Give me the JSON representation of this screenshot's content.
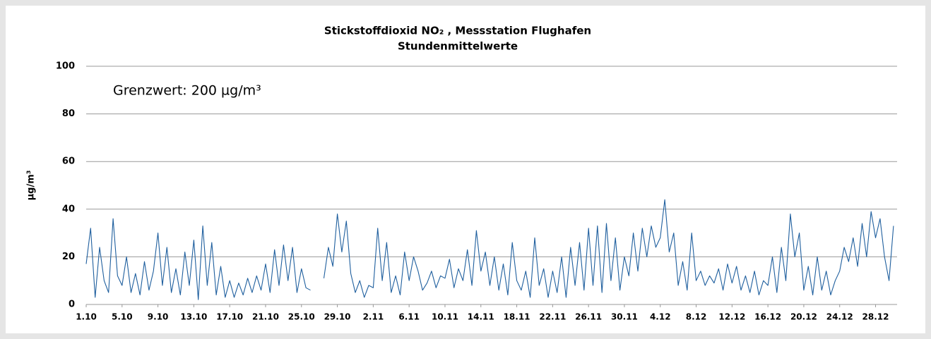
{
  "chart_data": {
    "type": "line",
    "title": "Stickstoffdioxid NO₂ , Messstation Flughafen",
    "subtitle": "Stundenmittelwerte",
    "ylabel": "µg/m³",
    "annotation": "Grenzwert: 200 µg/m³",
    "x": [
      0,
      0.5,
      1,
      1.5,
      2,
      2.5,
      3,
      3.5,
      4,
      4.5,
      5,
      5.5,
      6,
      6.5,
      7,
      7.5,
      8,
      8.5,
      9,
      9.5,
      10,
      10.5,
      11,
      11.5,
      12,
      12.5,
      13,
      13.5,
      14,
      14.5,
      15,
      15.5,
      16,
      16.5,
      17,
      17.5,
      18,
      18.5,
      19,
      19.5,
      20,
      20.5,
      21,
      21.5,
      22,
      22.5,
      23,
      23.5,
      24,
      24.5,
      25,
      25.5,
      26,
      26.5,
      27,
      27.5,
      28,
      28.5,
      29,
      29.5,
      30,
      30.5,
      31,
      31.5,
      32,
      32.5,
      33,
      33.5,
      34,
      34.5,
      35,
      35.5,
      36,
      36.5,
      37,
      37.5,
      38,
      38.5,
      39,
      39.5,
      40,
      40.5,
      41,
      41.5,
      42,
      42.5,
      43,
      43.5,
      44,
      44.5,
      45,
      45.5,
      46,
      46.5,
      47,
      47.5,
      48,
      48.5,
      49,
      49.5,
      50,
      50.5,
      51,
      51.5,
      52,
      52.5,
      53,
      53.5,
      54,
      54.5,
      55,
      55.5,
      56,
      56.5,
      57,
      57.5,
      58,
      58.5,
      59,
      59.5,
      60,
      60.5,
      61,
      61.5,
      62,
      62.5,
      63,
      63.5,
      64,
      64.5,
      65,
      65.5,
      66,
      66.5,
      67,
      67.5,
      68,
      68.5,
      69,
      69.5,
      70,
      70.5,
      71,
      71.5,
      72,
      72.5,
      73,
      73.5,
      74,
      74.5,
      75,
      75.5,
      76,
      76.5,
      77,
      77.5,
      78,
      78.5,
      79,
      79.5,
      80,
      80.5,
      81,
      81.5,
      82,
      82.5,
      83,
      83.5,
      84,
      84.5,
      85,
      85.5,
      86,
      86.5,
      87,
      87.5,
      88,
      88.5,
      89,
      89.5,
      90
    ],
    "series": [
      {
        "name": "NO₂",
        "color": "#1f5f9e",
        "values": [
          17,
          32,
          3,
          24,
          10,
          5,
          36,
          12,
          8,
          20,
          5,
          13,
          4,
          18,
          6,
          14,
          30,
          8,
          24,
          5,
          15,
          4,
          22,
          8,
          27,
          2,
          33,
          8,
          26,
          4,
          16,
          3,
          10,
          3,
          9,
          4,
          11,
          5,
          12,
          6,
          17,
          5,
          23,
          8,
          25,
          10,
          24,
          5,
          15,
          7,
          6,
          null,
          null,
          11,
          24,
          16,
          38,
          22,
          35,
          13,
          5,
          10,
          3,
          8,
          7,
          32,
          10,
          26,
          5,
          12,
          4,
          22,
          10,
          20,
          14,
          6,
          9,
          14,
          7,
          12,
          11,
          19,
          7,
          15,
          10,
          23,
          8,
          31,
          14,
          22,
          8,
          20,
          6,
          17,
          4,
          26,
          10,
          6,
          14,
          3,
          28,
          8,
          15,
          3,
          14,
          5,
          20,
          3,
          24,
          8,
          26,
          6,
          32,
          8,
          33,
          5,
          34,
          10,
          28,
          6,
          20,
          12,
          30,
          14,
          32,
          20,
          33,
          24,
          28,
          44,
          22,
          30,
          8,
          18,
          6,
          30,
          10,
          14,
          8,
          12,
          9,
          15,
          6,
          17,
          9,
          16,
          6,
          12,
          5,
          14,
          4,
          10,
          8,
          20,
          5,
          24,
          10,
          38,
          20,
          30,
          6,
          16,
          4,
          20,
          6,
          14,
          4,
          10,
          14,
          24,
          18,
          28,
          16,
          34,
          20,
          39,
          28,
          36,
          20,
          10,
          33
        ]
      }
    ],
    "xlim": [
      0,
      90.4
    ],
    "xticks": [
      {
        "value": 0,
        "label": "1.10"
      },
      {
        "value": 4,
        "label": "5.10"
      },
      {
        "value": 8,
        "label": "9.10"
      },
      {
        "value": 12,
        "label": "13.10"
      },
      {
        "value": 16,
        "label": "17.10"
      },
      {
        "value": 20,
        "label": "21.10"
      },
      {
        "value": 24,
        "label": "25.10"
      },
      {
        "value": 28,
        "label": "29.10"
      },
      {
        "value": 32,
        "label": "2.11"
      },
      {
        "value": 36,
        "label": "6.11"
      },
      {
        "value": 40,
        "label": "10.11"
      },
      {
        "value": 44,
        "label": "14.11"
      },
      {
        "value": 48,
        "label": "18.11"
      },
      {
        "value": 52,
        "label": "22.11"
      },
      {
        "value": 56,
        "label": "26.11"
      },
      {
        "value": 60,
        "label": "30.11"
      },
      {
        "value": 64,
        "label": "4.12"
      },
      {
        "value": 68,
        "label": "8.12"
      },
      {
        "value": 72,
        "label": "12.12"
      },
      {
        "value": 76,
        "label": "16.12"
      },
      {
        "value": 80,
        "label": "20.12"
      },
      {
        "value": 84,
        "label": "24.12"
      },
      {
        "value": 88,
        "label": "28.12"
      }
    ],
    "ylim": [
      0,
      100
    ],
    "yticks": [
      0,
      20,
      40,
      60,
      80,
      100
    ],
    "grid": true
  }
}
